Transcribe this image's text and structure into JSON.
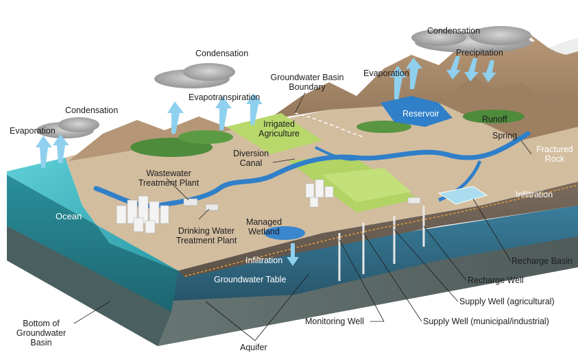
{
  "labels": {
    "condensation_left": "Condensation",
    "condensation_center": "Condensation",
    "condensation_right": "Condensation",
    "evaporation_left": "Evaporation",
    "evaporation_right": "Evaporation",
    "evapotranspiration": "Evapotranspiration",
    "groundwater_basin_boundary_line1": "Groundwater Basin",
    "groundwater_basin_boundary_line2": "Boundary",
    "precipitation": "Precipitation",
    "reservoir": "Reservoir",
    "runoff": "Runoff",
    "spring": "Spring",
    "fractured_rock_line1": "Fractured",
    "fractured_rock_line2": "Rock",
    "infiltration_right": "Infiltration",
    "irrigated_agriculture_line1": "Irrigated",
    "irrigated_agriculture_line2": "Agriculture",
    "diversion_canal_line1": "Diversion",
    "diversion_canal_line2": "Canal",
    "wastewater_plant_line1": "Wastewater",
    "wastewater_plant_line2": "Treatment Plant",
    "ocean": "Ocean",
    "drinking_water_plant_line1": "Drinking Water",
    "drinking_water_plant_line2": "Treatment Plant",
    "managed_wetland_line1": "Managed",
    "managed_wetland_line2": "Wetland",
    "infiltration_center": "Infiltration",
    "groundwater_table": "Groundwater Table",
    "recharge_basin": "Recharge Basin",
    "recharge_well": "Recharge Well",
    "supply_well_agricultural": "Supply Well (agricultural)",
    "supply_well_municipal": "Supply Well (municipal/industrial)",
    "monitoring_well": "Monitoring Well",
    "bottom_basin_line1": "Bottom of",
    "bottom_basin_line2": "Groundwater",
    "bottom_basin_line3": "Basin",
    "aquifer": "Aquifer"
  },
  "colors": {
    "ocean": "#3fb7c0",
    "water": "#2f7fc9",
    "land": "#cdb79c",
    "mountain": "#a98c6e",
    "vegetation": "#4c8a3a",
    "field": "#b7d66a",
    "arrow": "#8fd0ef",
    "cloud": "#9a9a9a",
    "aquifer": "#2f6f8c"
  }
}
